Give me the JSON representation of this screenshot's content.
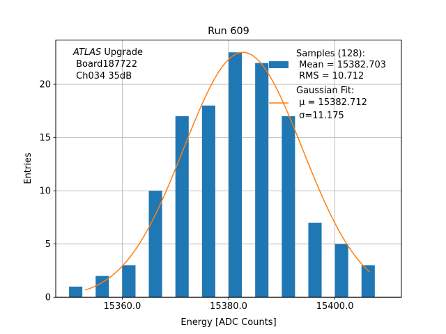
{
  "chart_data": {
    "type": "bar",
    "title": "Run 609",
    "xlabel": "Energy [ADC Counts]",
    "ylabel": "Entries",
    "xlim": [
      15347.5,
      15412.5
    ],
    "ylim": [
      0,
      24.15
    ],
    "xticks": [
      15360.0,
      15380.0,
      15400.0
    ],
    "xtick_labels": [
      "15360.0",
      "15380.0",
      "15400.0"
    ],
    "yticks": [
      0,
      5,
      10,
      15,
      20
    ],
    "ytick_labels": [
      "0",
      "5",
      "10",
      "15",
      "20"
    ],
    "grid": true,
    "bin_edges": [
      15350,
      15352.5,
      15355,
      15357.5,
      15360,
      15362.5,
      15365,
      15367.5,
      15370,
      15372.5,
      15375,
      15377.5,
      15380,
      15382.5,
      15385,
      15387.5,
      15390,
      15392.5,
      15395,
      15397.5,
      15400,
      15402.5,
      15405,
      15407.5,
      15410
    ],
    "series": [
      {
        "name": "Samples (128):",
        "kind": "histogram",
        "color": "#1f77b4",
        "values": [
          1,
          0,
          2,
          0,
          3,
          0,
          10,
          0,
          17,
          0,
          18,
          0,
          23,
          0,
          22,
          0,
          17,
          0,
          7,
          0,
          5,
          0,
          3,
          0
        ],
        "legend_lines": [
          "Samples (128):",
          " Mean = 15382.703",
          " RMS = 10.712"
        ]
      },
      {
        "name": "Gaussian Fit:",
        "kind": "line",
        "color": "#ff7f0e",
        "amplitude": 23.0,
        "mu": 15382.712,
        "sigma": 11.175,
        "x_range": [
          15353,
          15406.5
        ],
        "legend_lines": [
          "Gaussian Fit:",
          " μ = 15382.712",
          " σ=11.175"
        ]
      }
    ],
    "annotation": {
      "italic": "ATLAS",
      "rest": " Upgrade",
      "lines": [
        " Board187722",
        " Ch034 35dB"
      ]
    },
    "legend_position": "top-right"
  }
}
